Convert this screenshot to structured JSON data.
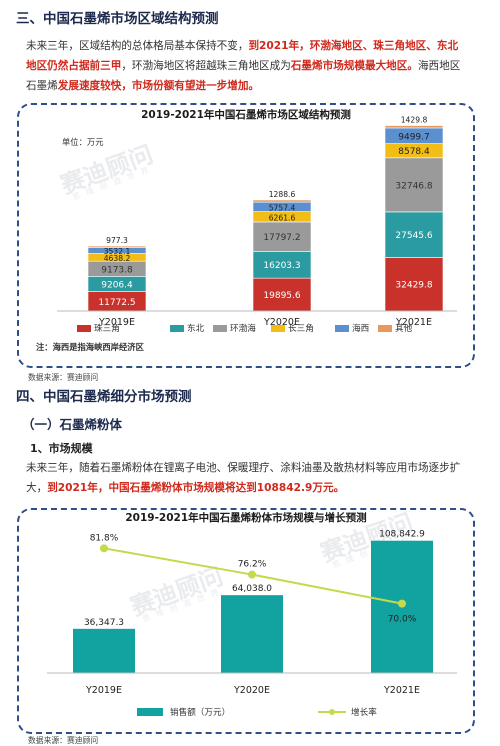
{
  "section3": {
    "title": "三、中国石墨烯市场区域结构预测",
    "para": [
      {
        "t": "未来三年，区域结构的总体格局基本保持不变，",
        "hl": false
      },
      {
        "t": "到2021年，环渤海地区、珠三角地区、东北地区仍然占据前三甲",
        "hl": true
      },
      {
        "t": "，环渤海地区将超越珠三角地区成为",
        "hl": false
      },
      {
        "t": "石墨烯市场规模最大地区。",
        "hl": true
      },
      {
        "t": "海西地区石墨烯",
        "hl": false
      },
      {
        "t": "发展速度较快，市场份额有望进一步增加。",
        "hl": true
      }
    ]
  },
  "chart1": {
    "title": "2019-2021年中国石墨烯市场区域结构预测",
    "unit": "单位：万元",
    "note": "注：海西是指海峡西岸经济区",
    "source": "数据来源：赛迪顾问"
  },
  "section4": {
    "title": "四、中国石墨烯细分市场预测",
    "sub1": "（一）石墨烯粉体",
    "sub2": "1、市场规模",
    "para": [
      {
        "t": "未来三年，随着石墨烯粉体在锂离子电池、保暖理疗、涂料油墨及散热材料等应用市场逐步扩大，",
        "hl": false
      },
      {
        "t": "到2021年，中国石墨烯粉体市场规模将达到108842.9万元。",
        "hl": true
      }
    ]
  },
  "chart2": {
    "title": "2019-2021年中国石墨烯粉体市场规模与增长预测",
    "source": "数据来源：赛迪顾问"
  },
  "watermark": {
    "main": "赛迪顾问",
    "sub": "思 维 创 造 世 界"
  },
  "colors": {
    "珠三角": "#c8322a",
    "东北": "#2a9ba0",
    "环渤海": "#9a9a9a",
    "长三角": "#f2bd16",
    "海西": "#5a8fd0",
    "其他": "#e8985a",
    "sales_bar": "#12a2a0",
    "growth_line": "#c6d84c",
    "box": "#2e4f87",
    "red": "#d0291c"
  },
  "chart_data": [
    {
      "type": "bar",
      "stacked": true,
      "title": "2019-2021年中国石墨烯市场区域结构预测",
      "unit": "单位：万元",
      "categories": [
        "Y2019E",
        "Y2020E",
        "Y2021E"
      ],
      "series": [
        {
          "name": "珠三角",
          "values": [
            11772.5,
            19895.6,
            32429.8
          ]
        },
        {
          "name": "东北",
          "values": [
            9206.4,
            16203.3,
            27545.6
          ]
        },
        {
          "name": "环渤海",
          "values": [
            9173.8,
            17797.2,
            32746.8
          ]
        },
        {
          "name": "长三角",
          "values": [
            4638.2,
            6261.6,
            8578.4
          ]
        },
        {
          "name": "海西",
          "values": [
            3532.1,
            5757.4,
            9499.7
          ]
        },
        {
          "name": "其他",
          "values": [
            977.3,
            1288.6,
            1429.8
          ]
        }
      ],
      "labels": [
        [
          "11772.5",
          "19895.6",
          "32429.8"
        ],
        [
          "9206.4",
          "16203.3",
          "27545.6"
        ],
        [
          "9173.8",
          "17797.2",
          "32746.8"
        ],
        [
          "4638.2",
          "6261.6",
          "8578.4"
        ],
        [
          "3532.1",
          "5757.4",
          "9499.7"
        ],
        [
          "977.3",
          "1288.6",
          "1429.8"
        ]
      ],
      "legend_position": "bottom"
    },
    {
      "type": "bar",
      "title": "2019-2021年中国石墨烯粉体市场规模与增长预测",
      "categories": [
        "Y2019E",
        "Y2020E",
        "Y2021E"
      ],
      "series": [
        {
          "name": "销售额（万元）",
          "type": "bar",
          "values": [
            36347.3,
            64038.0,
            108842.9
          ],
          "labels": [
            "36,347.3",
            "64,038.0",
            "108,842.9"
          ]
        },
        {
          "name": "增长率",
          "type": "line",
          "values": [
            81.8,
            76.2,
            70.0
          ],
          "labels": [
            "81.8%",
            "76.2%",
            "70.0%"
          ],
          "unit": "%"
        }
      ],
      "legend_position": "bottom"
    }
  ]
}
